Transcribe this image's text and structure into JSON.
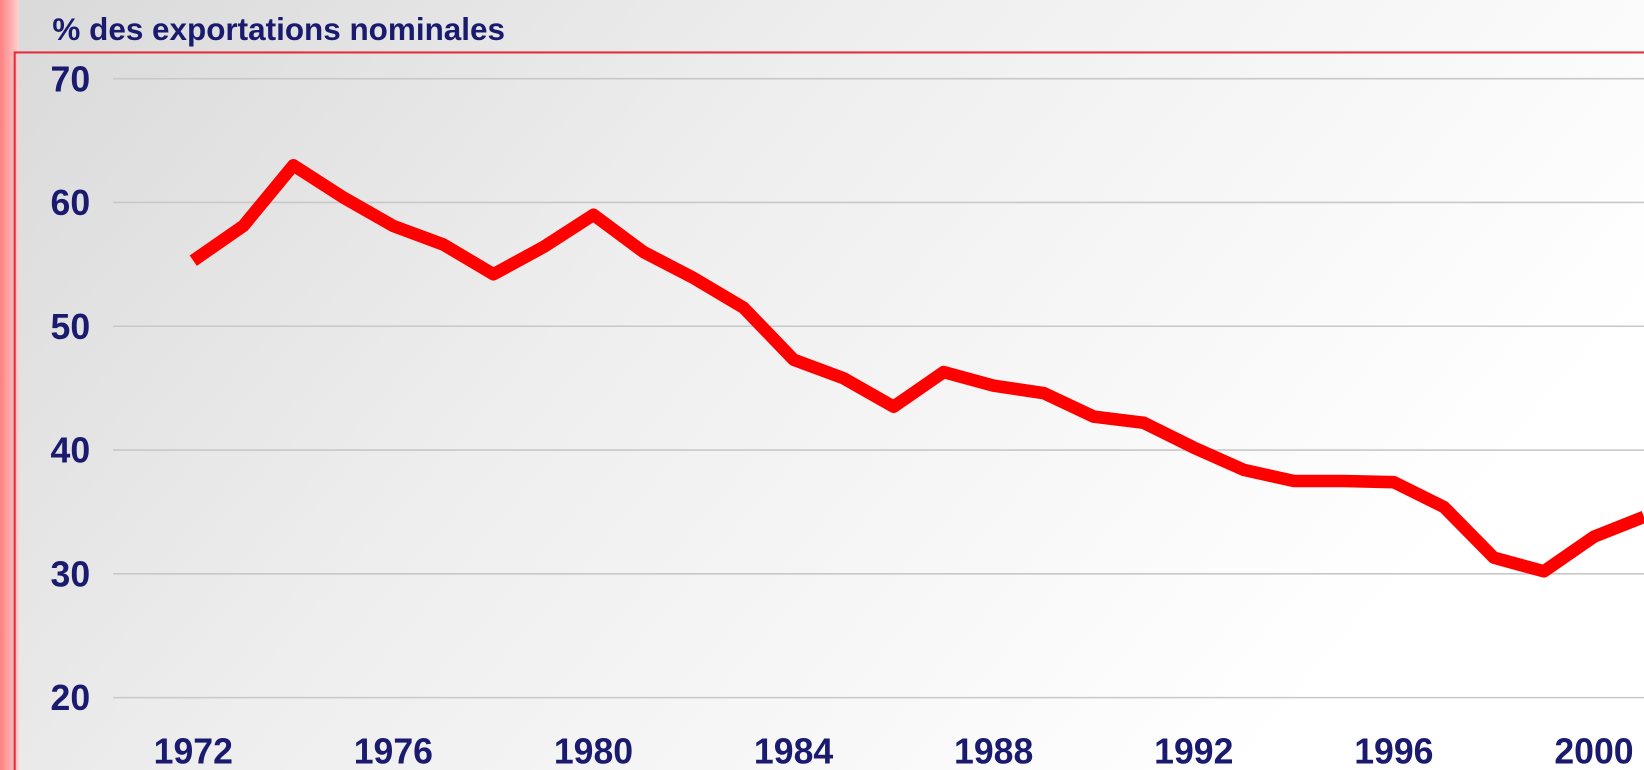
{
  "chart_data": {
    "type": "line",
    "title": "% des exportations nominales",
    "x": [
      1972,
      1973,
      1974,
      1975,
      1976,
      1977,
      1978,
      1979,
      1980,
      1981,
      1982,
      1983,
      1984,
      1985,
      1986,
      1987,
      1988,
      1989,
      1990,
      1991,
      1992,
      1993,
      1994,
      1995,
      1996,
      1997,
      1998,
      1999,
      2000,
      2001
    ],
    "values": [
      55.3,
      58.1,
      63.0,
      60.4,
      58.1,
      56.6,
      54.2,
      56.4,
      59.0,
      56.0,
      53.9,
      51.5,
      47.3,
      45.8,
      43.5,
      46.3,
      45.2,
      44.6,
      42.7,
      42.2,
      40.2,
      38.4,
      37.5,
      37.5,
      37.4,
      35.4,
      31.3,
      30.2,
      33.0,
      34.6
    ],
    "color": "#ff0000",
    "xlim": [
      1970.4,
      2001.0
    ],
    "xticks": [
      1972,
      1976,
      1980,
      1984,
      1988,
      1992,
      1996,
      2000
    ],
    "ylim": [
      20,
      70
    ],
    "yticks": [
      20,
      30,
      40,
      50,
      60,
      70
    ],
    "grid": true
  }
}
